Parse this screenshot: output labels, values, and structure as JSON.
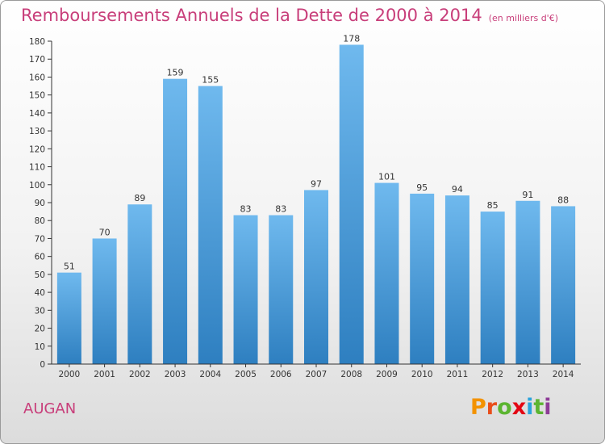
{
  "header": {
    "title": "Remboursements Annuels de la Dette de 2000 à 2014",
    "unit": "(en milliers d'€)"
  },
  "footer": {
    "commune": "AUGAN",
    "logo": [
      "P",
      "r",
      "o",
      "x",
      "i",
      "t",
      "i"
    ]
  },
  "colors": {
    "title": "#c83e7a",
    "bar_top": "#6fb9ee",
    "bar_bottom": "#2e7fc0",
    "logo": [
      "#f39200",
      "#e94e1b",
      "#5cb531",
      "#e30613",
      "#2aa3dc",
      "#5cb531",
      "#8e3c97"
    ]
  },
  "chart_data": {
    "type": "bar",
    "title": "Remboursements Annuels de la Dette de 2000 à 2014",
    "subtitle": "(en milliers d'€)",
    "xlabel": "",
    "ylabel": "",
    "categories": [
      "2000",
      "2001",
      "2002",
      "2003",
      "2004",
      "2005",
      "2006",
      "2007",
      "2008",
      "2009",
      "2010",
      "2011",
      "2012",
      "2013",
      "2014"
    ],
    "values": [
      51,
      70,
      89,
      159,
      155,
      83,
      83,
      97,
      178,
      101,
      95,
      94,
      85,
      91,
      88
    ],
    "ylim": [
      0,
      180
    ],
    "yticks": [
      0,
      10,
      20,
      30,
      40,
      50,
      60,
      70,
      80,
      90,
      100,
      110,
      120,
      130,
      140,
      150,
      160,
      170,
      180
    ],
    "grid": false,
    "legend": "none"
  }
}
